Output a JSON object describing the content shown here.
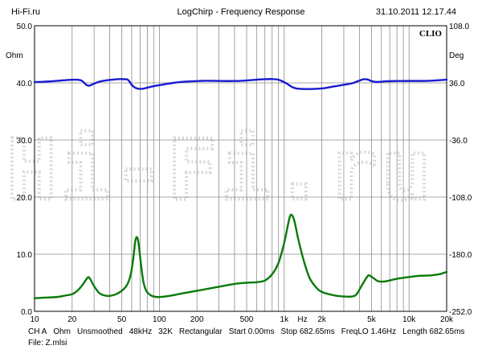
{
  "header": {
    "left": "Hi-Fi.ru",
    "center": "LogChirp - Frequency Response",
    "right": "31.10.2011 12.17.44"
  },
  "footer": {
    "info": [
      "CH A",
      "Ohm",
      "Unsmoothed",
      "48kHz",
      "32K",
      "Rectangular",
      "Start 0.00ms",
      "Stop 682.65ms",
      "FreqLO 1.46Hz",
      "Length 682.65ms"
    ],
    "file": "File: Z.mlsi"
  },
  "chart_data": {
    "type": "line",
    "brand": "CLIO",
    "watermark": "Hi-Fi.ru",
    "xscale": "log",
    "xlim": [
      10,
      20000
    ],
    "xlabel": "Hz",
    "xticks": [
      "10",
      "20",
      "50",
      "100",
      "200",
      "500",
      "1k",
      "2k",
      "5k",
      "10k",
      "20k"
    ],
    "ylim_left": [
      0,
      50
    ],
    "ylabel_left": "Ohm",
    "yticks_left": [
      "0.0",
      "10.0",
      "20.0",
      "30.0",
      "40.0",
      "50.0"
    ],
    "ylim_right": [
      -252,
      108
    ],
    "ylabel_right": "Deg",
    "yticks_right": [
      "-252.0",
      "-180.0",
      "-108.0",
      "-36.0",
      "36.0",
      "108.0"
    ],
    "grid": true,
    "series": [
      {
        "role": "impedance",
        "axis": "left",
        "color": "#0a7a0a",
        "points": [
          [
            10,
            2.3
          ],
          [
            12,
            2.4
          ],
          [
            15,
            2.5
          ],
          [
            18,
            2.8
          ],
          [
            20,
            3.0
          ],
          [
            22,
            3.6
          ],
          [
            24,
            4.5
          ],
          [
            26,
            5.6
          ],
          [
            27,
            6.0
          ],
          [
            28,
            5.6
          ],
          [
            30,
            4.4
          ],
          [
            33,
            3.2
          ],
          [
            36,
            2.8
          ],
          [
            40,
            2.7
          ],
          [
            45,
            3.0
          ],
          [
            50,
            3.6
          ],
          [
            55,
            4.6
          ],
          [
            59,
            6.5
          ],
          [
            62,
            9.5
          ],
          [
            64,
            12.2
          ],
          [
            66,
            13.0
          ],
          [
            68,
            12.0
          ],
          [
            71,
            8.5
          ],
          [
            74,
            5.5
          ],
          [
            78,
            3.7
          ],
          [
            84,
            2.9
          ],
          [
            90,
            2.6
          ],
          [
            100,
            2.5
          ],
          [
            120,
            2.7
          ],
          [
            150,
            3.1
          ],
          [
            200,
            3.6
          ],
          [
            300,
            4.3
          ],
          [
            400,
            4.8
          ],
          [
            500,
            5.0
          ],
          [
            600,
            5.1
          ],
          [
            700,
            5.4
          ],
          [
            800,
            6.5
          ],
          [
            900,
            8.5
          ],
          [
            1000,
            12.0
          ],
          [
            1080,
            15.5
          ],
          [
            1130,
            16.9
          ],
          [
            1200,
            16.0
          ],
          [
            1300,
            12.5
          ],
          [
            1450,
            8.5
          ],
          [
            1600,
            5.8
          ],
          [
            1800,
            4.2
          ],
          [
            2000,
            3.4
          ],
          [
            2500,
            2.8
          ],
          [
            3000,
            2.6
          ],
          [
            3500,
            2.6
          ],
          [
            3800,
            3.0
          ],
          [
            4200,
            4.6
          ],
          [
            4600,
            6.0
          ],
          [
            4800,
            6.3
          ],
          [
            5200,
            5.8
          ],
          [
            5600,
            5.3
          ],
          [
            6200,
            5.2
          ],
          [
            7000,
            5.4
          ],
          [
            8000,
            5.7
          ],
          [
            10000,
            6.0
          ],
          [
            12000,
            6.2
          ],
          [
            15000,
            6.3
          ],
          [
            17500,
            6.5
          ],
          [
            20000,
            6.9
          ]
        ]
      },
      {
        "role": "phase",
        "axis": "right",
        "color": "#1a1ad0",
        "points": [
          [
            10,
            37.0
          ],
          [
            12,
            37.5
          ],
          [
            15,
            38.5
          ],
          [
            18,
            39.5
          ],
          [
            21,
            40.0
          ],
          [
            23,
            39.6
          ],
          [
            24,
            38.5
          ],
          [
            25,
            36.0
          ],
          [
            26,
            33.5
          ],
          [
            27,
            32.5
          ],
          [
            28,
            32.9
          ],
          [
            30,
            35.0
          ],
          [
            33,
            37.5
          ],
          [
            37,
            39.0
          ],
          [
            42,
            40.0
          ],
          [
            46,
            40.6
          ],
          [
            50,
            40.7
          ],
          [
            54,
            40.5
          ],
          [
            56,
            39.8
          ],
          [
            58,
            37.0
          ],
          [
            60,
            33.5
          ],
          [
            63,
            30.5
          ],
          [
            66,
            29.0
          ],
          [
            69,
            28.5
          ],
          [
            73,
            28.5
          ],
          [
            78,
            29.5
          ],
          [
            85,
            31.0
          ],
          [
            95,
            32.5
          ],
          [
            110,
            34.2
          ],
          [
            130,
            36.0
          ],
          [
            150,
            37.2
          ],
          [
            180,
            38.0
          ],
          [
            210,
            38.4
          ],
          [
            240,
            38.6
          ],
          [
            280,
            38.5
          ],
          [
            320,
            38.3
          ],
          [
            380,
            38.3
          ],
          [
            440,
            38.5
          ],
          [
            500,
            39.0
          ],
          [
            600,
            40.0
          ],
          [
            700,
            40.6
          ],
          [
            800,
            40.8
          ],
          [
            880,
            40.3
          ],
          [
            950,
            38.5
          ],
          [
            1050,
            35.0
          ],
          [
            1150,
            31.0
          ],
          [
            1250,
            29.0
          ],
          [
            1400,
            28.3
          ],
          [
            1600,
            28.2
          ],
          [
            1850,
            28.6
          ],
          [
            2100,
            29.3
          ],
          [
            2500,
            31.5
          ],
          [
            3000,
            33.5
          ],
          [
            3500,
            35.5
          ],
          [
            3800,
            37.5
          ],
          [
            4100,
            39.5
          ],
          [
            4400,
            40.6
          ],
          [
            4700,
            40.0
          ],
          [
            5000,
            38.2
          ],
          [
            5400,
            37.2
          ],
          [
            5900,
            37.3
          ],
          [
            6500,
            38.0
          ],
          [
            8000,
            38.3
          ],
          [
            10000,
            38.4
          ],
          [
            12000,
            38.4
          ],
          [
            14000,
            38.5
          ],
          [
            17000,
            39.2
          ],
          [
            20000,
            40.0
          ]
        ]
      }
    ]
  }
}
